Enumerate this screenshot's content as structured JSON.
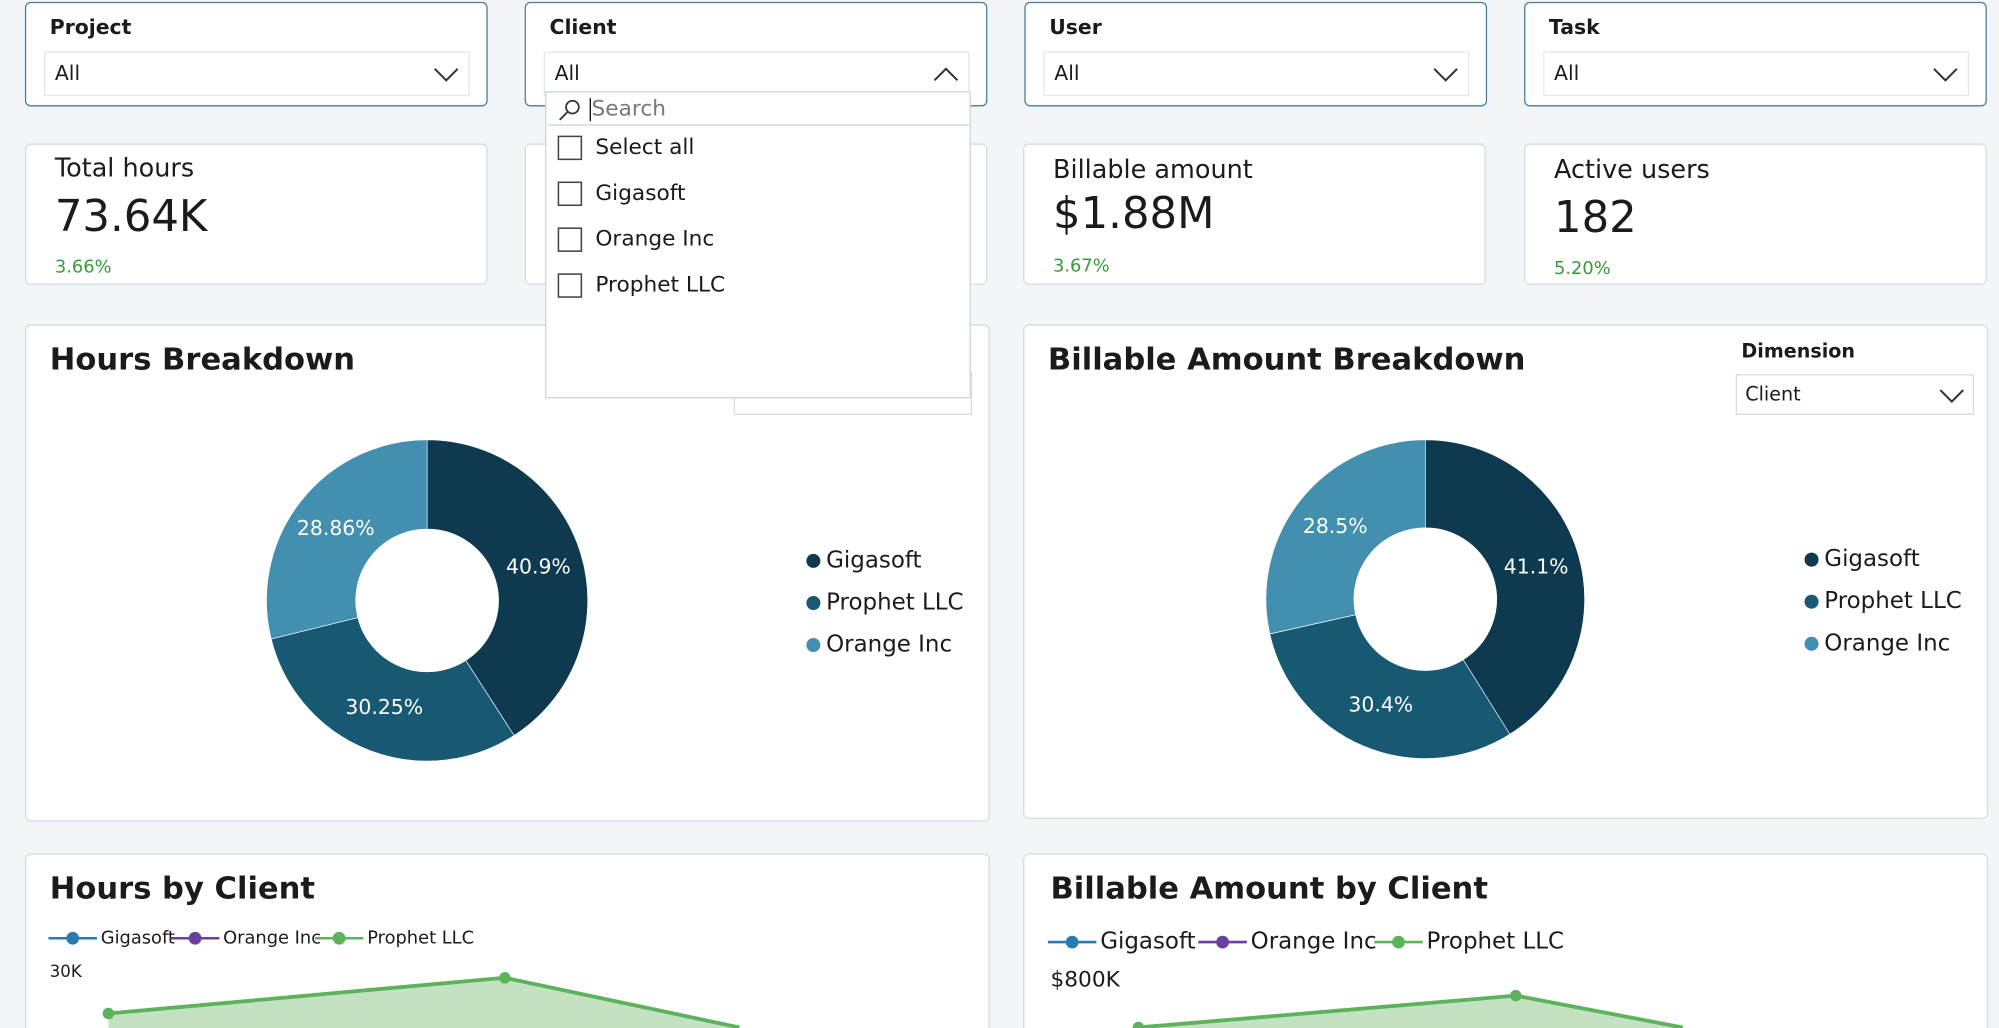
{
  "filters": [
    {
      "label": "Project",
      "selected": "All"
    },
    {
      "label": "Client",
      "selected": "All"
    },
    {
      "label": "User",
      "selected": "All"
    },
    {
      "label": "Task",
      "selected": "All"
    }
  ],
  "client_dropdown": {
    "search_placeholder": "Search",
    "options": [
      "Select all",
      "Gigasoft",
      "Orange Inc",
      "Prophet LLC"
    ]
  },
  "kpi_cards": [
    {
      "label": "Total hours",
      "value": "73.64K",
      "change": "3.66%"
    },
    {
      "label": "Billable amount",
      "value": "$1.88M",
      "change": "3.67%"
    },
    {
      "label": "Active users",
      "value": "182",
      "change": "5.20%"
    }
  ],
  "hours_breakdown": {
    "type": "pie",
    "title": "Hours Breakdown",
    "categories": [
      "Gigasoft",
      "Prophet LLC",
      "Orange Inc"
    ],
    "values": [
      40.9,
      30.25,
      28.86
    ],
    "value_labels": [
      "40.9%",
      "30.25%",
      "28.86%"
    ],
    "colors": [
      "#0d3a4f",
      "#175873",
      "#428fb0"
    ]
  },
  "billable_breakdown": {
    "type": "pie",
    "title": "Billable Amount Breakdown",
    "dimension": {
      "label": "Dimension",
      "selected": "Client"
    },
    "categories": [
      "Gigasoft",
      "Prophet LLC",
      "Orange Inc"
    ],
    "values": [
      41.1,
      30.4,
      28.5
    ],
    "value_labels": [
      "41.1%",
      "30.4%",
      "28.5%"
    ],
    "colors": [
      "#0d3a4f",
      "#175873",
      "#428fb0"
    ]
  },
  "hours_by_client": {
    "title": "Hours by Client",
    "legend": [
      {
        "name": "Gigasoft",
        "color": "#2a7ab0"
      },
      {
        "name": "Orange Inc",
        "color": "#6b3fa0"
      },
      {
        "name": "Prophet LLC",
        "color": "#5cb35c"
      }
    ],
    "yticks": [
      {
        "value": 30000,
        "label": "30K"
      }
    ]
  },
  "billable_by_client": {
    "title": "Billable Amount by Client",
    "legend": [
      {
        "name": "Gigasoft",
        "color": "#2a7ab0"
      },
      {
        "name": "Orange Inc",
        "color": "#6b3fa0"
      },
      {
        "name": "Prophet LLC",
        "color": "#5cb35c"
      }
    ],
    "yticks": [
      {
        "value": 800000,
        "label": "$800K"
      }
    ]
  }
}
